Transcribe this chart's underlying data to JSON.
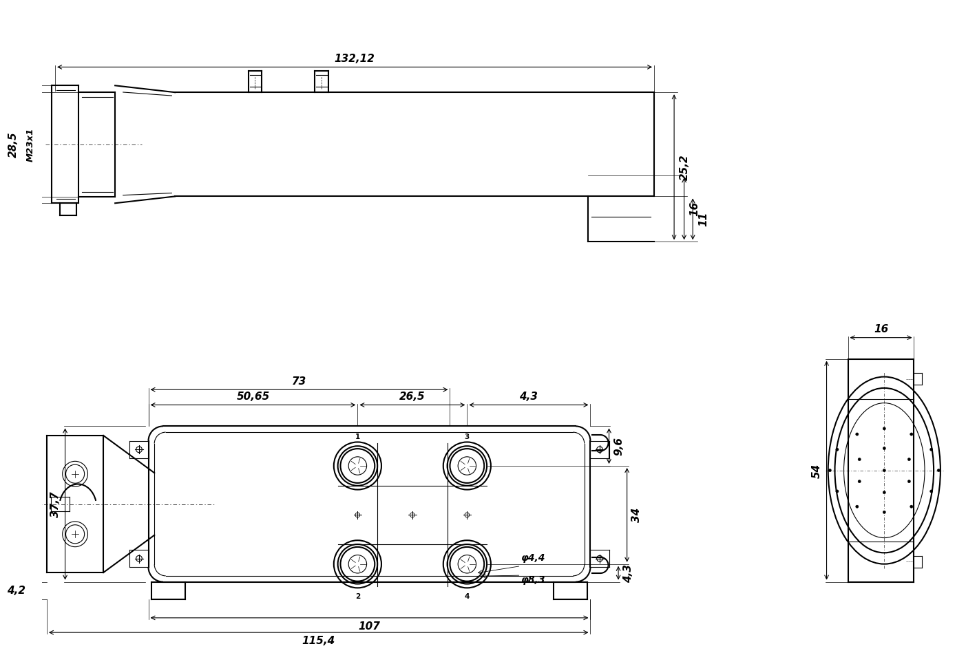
{
  "bg_color": "#ffffff",
  "line_color": "#000000",
  "lw": 1.5,
  "lw_thin": 0.8,
  "lw_dim": 0.8,
  "fs": 11,
  "top_ann": {
    "132_12": "132,12",
    "28_5": "28,5",
    "M23x1": "M23x1",
    "11": "11",
    "16": "16",
    "25_2": "25,2"
  },
  "front_ann": {
    "73": "73",
    "50_65": "50,65",
    "26_5": "26,5",
    "4_3": "4,3",
    "9_6": "9,6",
    "37_7": "37,7",
    "34": "34",
    "4_3b": "4,3",
    "phi44": "φ4,4",
    "phi83": "φ8,3",
    "107": "107",
    "115_4": "115,4",
    "4_2": "4,2"
  },
  "side_ann": {
    "16": "16",
    "54": "54"
  }
}
